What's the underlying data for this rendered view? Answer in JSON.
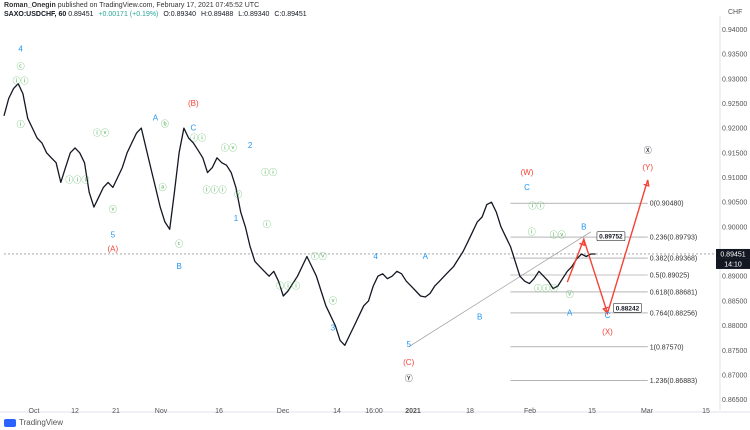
{
  "header": {
    "author_line_user": "Roman_Onegin",
    "author_line_rest": "published on TradingView.com, February 17, 2021 07:45:52 UTC",
    "symbol": "SAXO:USDCHF, 60",
    "last": "0.89451",
    "change": "+0.00171 (+0.19%)",
    "open": "O:0.89340",
    "high": "H:0.89488",
    "low": "L:0.89340",
    "close": "C:0.89451"
  },
  "brand": {
    "name": "TradingView"
  },
  "chart_data": {
    "type": "line",
    "currency_label": "CHF",
    "ylim": [
      0.8629,
      0.9415
    ],
    "y_ticks": [
      "0.94000",
      "0.93500",
      "0.93000",
      "0.92500",
      "0.92000",
      "0.91500",
      "0.91000",
      "0.90500",
      "0.90000",
      "0.89500",
      "0.89000",
      "0.88500",
      "0.88000",
      "0.87500",
      "0.87000",
      "0.86500"
    ],
    "x_ticks": [
      "Oct",
      "12",
      "21",
      "Nov",
      "16",
      "Dec",
      "14",
      "16:00",
      "2021",
      "18",
      "Feb",
      "15",
      "Mar",
      "15"
    ],
    "price_badge": "0.89451",
    "time_badge": "14:10",
    "series_price": {
      "x": [
        0,
        2,
        4,
        6,
        8,
        10,
        12,
        14,
        16,
        18,
        20,
        22,
        24,
        26,
        28,
        30,
        32,
        34,
        36,
        38,
        40,
        42,
        44,
        46,
        48,
        50,
        52,
        54,
        56,
        58,
        60,
        62,
        64,
        66,
        68,
        70,
        72,
        74,
        76,
        78,
        80,
        82,
        84,
        86,
        88,
        90,
        92,
        94,
        96,
        98,
        100,
        102,
        104,
        106,
        108,
        110,
        112,
        114,
        116,
        118,
        120,
        122,
        124,
        126,
        128,
        130,
        132,
        134,
        136,
        138,
        140,
        142,
        144,
        146,
        148,
        150,
        152,
        154,
        156,
        158,
        160,
        162,
        164,
        166,
        168,
        170,
        172,
        174,
        176,
        178,
        180,
        182,
        184,
        186,
        188,
        190,
        192,
        194,
        196,
        198,
        200,
        202,
        204,
        206,
        208,
        210,
        212,
        214,
        216,
        218,
        220,
        222,
        224,
        226,
        228,
        230,
        232,
        234,
        236,
        238,
        240,
        242,
        244,
        246,
        248,
        250
      ],
      "y": [
        0.9225,
        0.926,
        0.928,
        0.929,
        0.927,
        0.922,
        0.92,
        0.918,
        0.917,
        0.915,
        0.914,
        0.913,
        0.909,
        0.912,
        0.915,
        0.916,
        0.915,
        0.913,
        0.907,
        0.904,
        0.906,
        0.908,
        0.909,
        0.908,
        0.91,
        0.912,
        0.915,
        0.917,
        0.919,
        0.92,
        0.916,
        0.912,
        0.908,
        0.904,
        0.901,
        0.8995,
        0.907,
        0.915,
        0.92,
        0.918,
        0.917,
        0.9155,
        0.914,
        0.911,
        0.912,
        0.914,
        0.913,
        0.9125,
        0.911,
        0.908,
        0.903,
        0.9,
        0.896,
        0.893,
        0.892,
        0.891,
        0.89,
        0.891,
        0.889,
        0.886,
        0.887,
        0.8885,
        0.89,
        0.892,
        0.894,
        0.892,
        0.89,
        0.887,
        0.884,
        0.882,
        0.88,
        0.877,
        0.876,
        0.878,
        0.88,
        0.882,
        0.884,
        0.885,
        0.888,
        0.89,
        0.8905,
        0.8895,
        0.89,
        0.891,
        0.8905,
        0.889,
        0.888,
        0.887,
        0.886,
        0.8858,
        0.8865,
        0.888,
        0.889,
        0.89,
        0.891,
        0.892,
        0.8935,
        0.895,
        0.897,
        0.899,
        0.901,
        0.902,
        0.9045,
        0.905,
        0.903,
        0.9,
        0.898,
        0.896,
        0.893,
        0.89,
        0.889,
        0.8885,
        0.8895,
        0.891,
        0.89,
        0.889,
        0.8875,
        0.888,
        0.8895,
        0.891,
        0.892,
        0.8935,
        0.8945,
        0.894,
        0.8945,
        0.8945
      ]
    },
    "x_range": [
      0,
      300
    ],
    "fib_levels": [
      {
        "label": "0(0.90480)",
        "value": 0.9048
      },
      {
        "label": "0.236(0.89793)",
        "value": 0.89793
      },
      {
        "label": "0.382(0.89368)",
        "value": 0.89368
      },
      {
        "label": "0.5(0.89025)",
        "value": 0.89025
      },
      {
        "label": "0.618(0.88681)",
        "value": 0.88681
      },
      {
        "label": "0.764(0.88256)",
        "value": 0.88256
      },
      {
        "label": "1(0.87570)",
        "value": 0.8757
      },
      {
        "label": "1.236(0.86883)",
        "value": 0.86883
      }
    ],
    "callouts": [
      "0.89752",
      "0.88242"
    ],
    "wave_labels": [
      {
        "text": "4",
        "x": 7,
        "y": 0.9355,
        "color": "#2196f3"
      },
      {
        "text": "ⓒ",
        "x": 7,
        "y": 0.932,
        "color": "#4caf50"
      },
      {
        "text": "ⓘⓘ",
        "x": 7,
        "y": 0.929,
        "color": "#4caf50"
      },
      {
        "text": "ⓘ",
        "x": 7,
        "y": 0.9202,
        "color": "#4caf50"
      },
      {
        "text": "ⓘⓥ",
        "x": 41,
        "y": 0.9185,
        "color": "#4caf50"
      },
      {
        "text": "ⓘⓘⓘ",
        "x": 31,
        "y": 0.909,
        "color": "#4caf50"
      },
      {
        "text": "ⓥ",
        "x": 46,
        "y": 0.903,
        "color": "#4caf50"
      },
      {
        "text": "5",
        "x": 46,
        "y": 0.8978,
        "color": "#2196f3"
      },
      {
        "text": "(A)",
        "x": 46,
        "y": 0.895,
        "color": "#f44336"
      },
      {
        "text": "A",
        "x": 64,
        "y": 0.9215,
        "color": "#2196f3"
      },
      {
        "text": "ⓑ",
        "x": 68,
        "y": 0.9203,
        "color": "#4caf50"
      },
      {
        "text": "ⓐ",
        "x": 67,
        "y": 0.9075,
        "color": "#4caf50"
      },
      {
        "text": "ⓒ",
        "x": 74,
        "y": 0.896,
        "color": "#4caf50"
      },
      {
        "text": "B",
        "x": 74,
        "y": 0.8915,
        "color": "#2196f3"
      },
      {
        "text": "(B)",
        "x": 80,
        "y": 0.9245,
        "color": "#f44336"
      },
      {
        "text": "C",
        "x": 80,
        "y": 0.9195,
        "color": "#2196f3"
      },
      {
        "text": "ⓘⓘ",
        "x": 82,
        "y": 0.9175,
        "color": "#4caf50"
      },
      {
        "text": "ⓘⓥ",
        "x": 95,
        "y": 0.9155,
        "color": "#4caf50"
      },
      {
        "text": "2",
        "x": 104,
        "y": 0.916,
        "color": "#2196f3"
      },
      {
        "text": "ⓘⓘⓘ",
        "x": 89,
        "y": 0.907,
        "color": "#4caf50"
      },
      {
        "text": "ⓥ",
        "x": 99,
        "y": 0.906,
        "color": "#4caf50"
      },
      {
        "text": "ⓘⓘ",
        "x": 112,
        "y": 0.9105,
        "color": "#4caf50"
      },
      {
        "text": "1",
        "x": 98,
        "y": 0.9012,
        "color": "#2196f3"
      },
      {
        "text": "ⓘ",
        "x": 111,
        "y": 0.9,
        "color": "#4caf50"
      },
      {
        "text": "ⓘⓥ",
        "x": 133,
        "y": 0.8935,
        "color": "#4caf50"
      },
      {
        "text": "4",
        "x": 157,
        "y": 0.8935,
        "color": "#2196f3"
      },
      {
        "text": "ⓘⓘⓘ",
        "x": 120,
        "y": 0.8875,
        "color": "#4caf50"
      },
      {
        "text": "ⓥ",
        "x": 139,
        "y": 0.8845,
        "color": "#4caf50"
      },
      {
        "text": "3",
        "x": 139,
        "y": 0.879,
        "color": "#2196f3"
      },
      {
        "text": "5",
        "x": 171,
        "y": 0.8757,
        "color": "#2196f3"
      },
      {
        "text": "(C)",
        "x": 171,
        "y": 0.872,
        "color": "#f44336"
      },
      {
        "text": "Ⓨ",
        "x": 171,
        "y": 0.8688,
        "color": "#131722"
      },
      {
        "text": "A",
        "x": 178,
        "y": 0.8935,
        "color": "#2196f3"
      },
      {
        "text": "B",
        "x": 201,
        "y": 0.8812,
        "color": "#2196f3"
      },
      {
        "text": "(W)",
        "x": 221,
        "y": 0.9105,
        "color": "#f44336"
      },
      {
        "text": "C",
        "x": 221,
        "y": 0.9075,
        "color": "#2196f3"
      },
      {
        "text": "ⓘⓘ",
        "x": 225,
        "y": 0.9037,
        "color": "#4caf50"
      },
      {
        "text": "ⓘ",
        "x": 223,
        "y": 0.8985,
        "color": "#4caf50"
      },
      {
        "text": "ⓘⓥ",
        "x": 234,
        "y": 0.8978,
        "color": "#4caf50"
      },
      {
        "text": "ⓘⓘⓘ",
        "x": 229,
        "y": 0.887,
        "color": "#4caf50"
      },
      {
        "text": "ⓥ",
        "x": 239,
        "y": 0.8858,
        "color": "#4caf50"
      },
      {
        "text": "A",
        "x": 239,
        "y": 0.882,
        "color": "#2196f3"
      },
      {
        "text": "B",
        "x": 245,
        "y": 0.8995,
        "color": "#2196f3"
      },
      {
        "text": "C",
        "x": 255,
        "y": 0.8815,
        "color": "#2196f3"
      },
      {
        "text": "(X)",
        "x": 255,
        "y": 0.8782,
        "color": "#f44336"
      },
      {
        "text": "Ⓧ",
        "x": 272,
        "y": 0.915,
        "color": "#131722"
      },
      {
        "text": "(Y)",
        "x": 272,
        "y": 0.9115,
        "color": "#f44336"
      }
    ],
    "projection": [
      {
        "x": 238,
        "y": 0.8888
      },
      {
        "x": 245,
        "y": 0.8975
      },
      {
        "x": 255,
        "y": 0.8825
      },
      {
        "x": 272,
        "y": 0.9095
      }
    ],
    "channel_line": [
      {
        "x": 171,
        "y": 0.8757
      },
      {
        "x": 248,
        "y": 0.899
      }
    ]
  }
}
